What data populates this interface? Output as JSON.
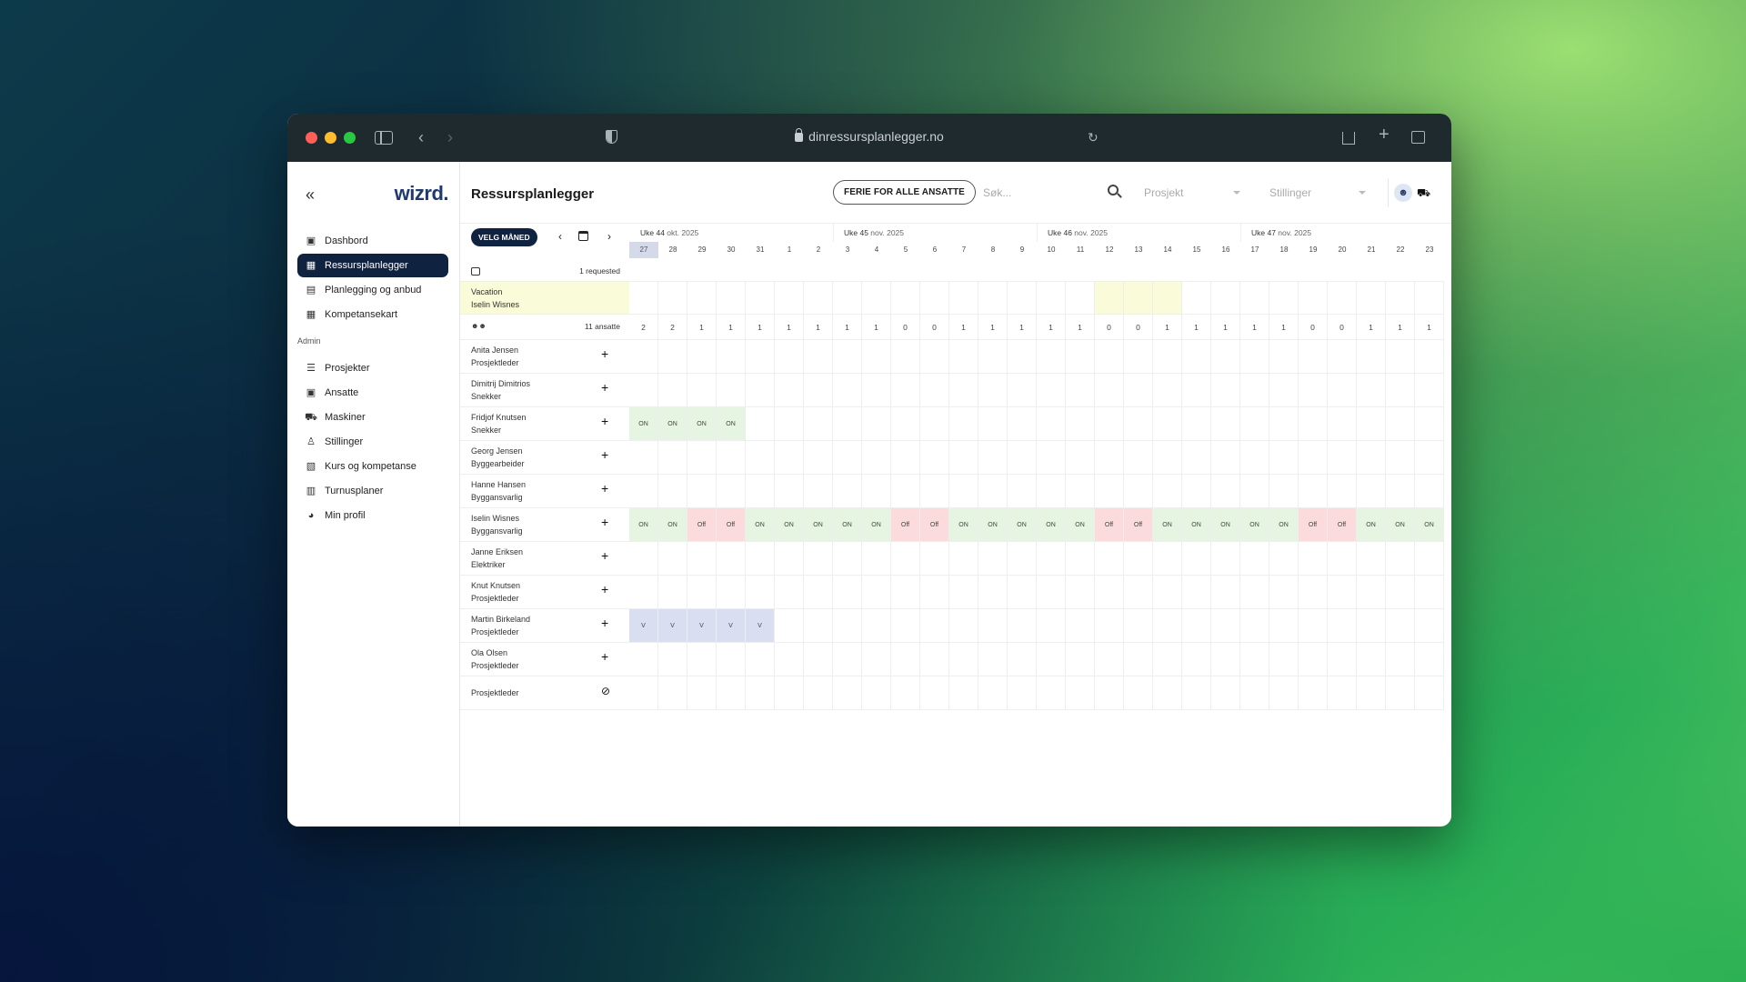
{
  "browser": {
    "url": "dinressursplanlegger.no"
  },
  "sidebar": {
    "logo": "wizrd.",
    "items": [
      {
        "label": "Dashbord",
        "icon": "dashboard-icon",
        "glyph": "▣"
      },
      {
        "label": "Ressursplanlegger",
        "icon": "calendar-icon",
        "glyph": "▦",
        "active": true
      },
      {
        "label": "Planlegging og anbud",
        "icon": "document-icon",
        "glyph": "▤"
      },
      {
        "label": "Kompetansekart",
        "icon": "table-icon",
        "glyph": "▦"
      }
    ],
    "section_admin": "Admin",
    "admin_items": [
      {
        "label": "Prosjekter",
        "icon": "tasks-icon",
        "glyph": "☰"
      },
      {
        "label": "Ansatte",
        "icon": "id-card-icon",
        "glyph": "▣"
      },
      {
        "label": "Maskiner",
        "icon": "excavator-icon",
        "glyph": "⛟"
      },
      {
        "label": "Stillinger",
        "icon": "person-icon",
        "glyph": "♙"
      },
      {
        "label": "Kurs og kompetanse",
        "icon": "presentation-icon",
        "glyph": "▧"
      },
      {
        "label": "Turnusplaner",
        "icon": "schedule-icon",
        "glyph": "▥"
      },
      {
        "label": "Min profil",
        "icon": "profile-icon",
        "glyph": "◕"
      }
    ]
  },
  "header": {
    "title": "Ressursplanlegger",
    "ferie_button": "FERIE FOR ALLE ANSATTE",
    "search_placeholder": "Søk...",
    "project_select": "Prosjekt",
    "position_select": "Stillinger"
  },
  "controls": {
    "velg_button": "VELG MÅNED"
  },
  "weeks": [
    {
      "label": "Uke 44",
      "month": "okt. 2025"
    },
    {
      "label": "Uke 45",
      "month": "nov. 2025"
    },
    {
      "label": "Uke 46",
      "month": "nov. 2025"
    },
    {
      "label": "Uke 47",
      "month": "nov. 2025"
    }
  ],
  "days": [
    "27",
    "28",
    "29",
    "30",
    "31",
    "1",
    "2",
    "3",
    "4",
    "5",
    "6",
    "7",
    "8",
    "9",
    "10",
    "11",
    "12",
    "13",
    "14",
    "15",
    "16",
    "17",
    "18",
    "19",
    "20",
    "21",
    "22",
    "23"
  ],
  "today_index": 0,
  "requests": {
    "label": "1 requested",
    "type": "Vacation",
    "person": "Iselin Wisnes",
    "highlight_days": [
      16,
      17,
      18
    ]
  },
  "summary": {
    "label": "11 ansatte",
    "counts": [
      "2",
      "2",
      "1",
      "1",
      "1",
      "1",
      "1",
      "1",
      "1",
      "0",
      "0",
      "1",
      "1",
      "1",
      "1",
      "1",
      "0",
      "0",
      "1",
      "1",
      "1",
      "1",
      "1",
      "0",
      "0",
      "1",
      "1",
      "1"
    ]
  },
  "employees": [
    {
      "name": "Anita Jensen",
      "role": "Prosjektleder",
      "cells": {}
    },
    {
      "name": "Dimitrij Dimitrios",
      "role": "Snekker",
      "cells": {}
    },
    {
      "name": "Fridjof Knutsen",
      "role": "Snekker",
      "cells": {
        "0": "ON",
        "1": "ON",
        "2": "ON",
        "3": "ON"
      }
    },
    {
      "name": "Georg Jensen",
      "role": "Byggearbeider",
      "cells": {}
    },
    {
      "name": "Hanne Hansen",
      "role": "Byggansvarlig",
      "cells": {}
    },
    {
      "name": "Iselin Wisnes",
      "role": "Byggansvarlig",
      "cells": {
        "0": "ON",
        "1": "ON",
        "2": "Off",
        "3": "Off",
        "4": "ON",
        "5": "ON",
        "6": "ON",
        "7": "ON",
        "8": "ON",
        "9": "Off",
        "10": "Off",
        "11": "ON",
        "12": "ON",
        "13": "ON",
        "14": "ON",
        "15": "ON",
        "16": "Off",
        "17": "Off",
        "18": "ON",
        "19": "ON",
        "20": "ON",
        "21": "ON",
        "22": "ON",
        "23": "Off",
        "24": "Off",
        "25": "ON",
        "26": "ON",
        "27": "ON"
      }
    },
    {
      "name": "Janne Eriksen",
      "role": "Elektriker",
      "cells": {}
    },
    {
      "name": "Knut Knutsen",
      "role": "Prosjektleder",
      "cells": {}
    },
    {
      "name": "Martin Birkeland",
      "role": "Prosjektleder",
      "cells": {
        "0": "V",
        "1": "V",
        "2": "V",
        "3": "V",
        "4": "V"
      }
    },
    {
      "name": "Ola Olsen",
      "role": "Prosjektleder",
      "cells": {}
    }
  ],
  "unassigned_role": "Prosjektleder",
  "colors": {
    "on": "#e6f5e1",
    "off": "#fbdbdb",
    "vacation": "#d9dff0",
    "requested": "#f9fbd9",
    "active_nav": "#0f2240"
  }
}
